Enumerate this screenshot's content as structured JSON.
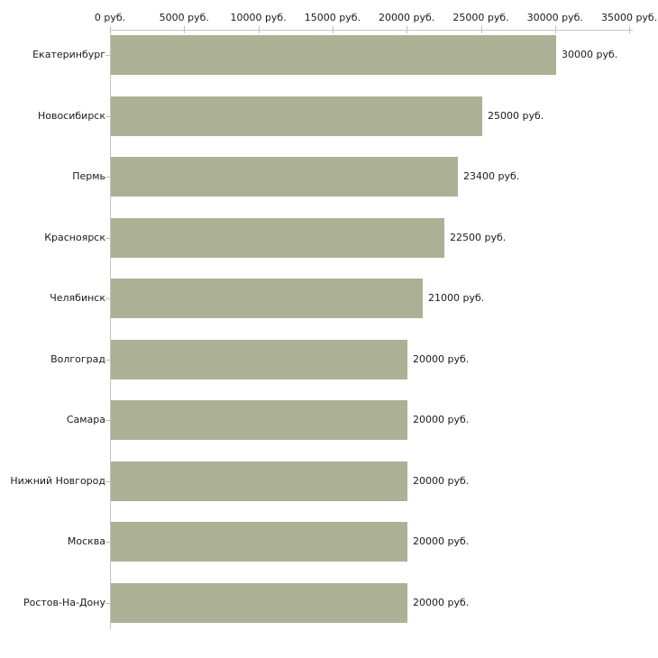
{
  "chart_data": {
    "type": "bar",
    "orientation": "horizontal",
    "title": "",
    "unit": "руб.",
    "categories": [
      "Екатеринбург",
      "Новосибирск",
      "Пермь",
      "Красноярск",
      "Челябинск",
      "Волгоград",
      "Самара",
      "Нижний Новгород",
      "Москва",
      "Ростов-На-Дону"
    ],
    "values": [
      30000,
      25000,
      23400,
      22500,
      21000,
      20000,
      20000,
      20000,
      20000,
      20000
    ],
    "value_labels": [
      "30000 руб.",
      "25000 руб.",
      "23400 руб.",
      "22500 руб.",
      "21000 руб.",
      "20000 руб.",
      "20000 руб.",
      "20000 руб.",
      "20000 руб.",
      "20000 руб."
    ],
    "xlabel": "",
    "ylabel": "",
    "xlim": [
      0,
      35000
    ],
    "x_axis": {
      "tick_values": [
        0,
        5000,
        10000,
        15000,
        20000,
        25000,
        30000,
        35000
      ],
      "tick_labels": [
        "0 руб.",
        "5000 руб.",
        "10000 руб.",
        "15000 руб.",
        "20000 руб.",
        "25000 руб.",
        "30000 руб.",
        "35000 руб."
      ],
      "position": "top"
    },
    "legend": "none",
    "grid": "off",
    "style": {
      "bar_color": "#acb196",
      "axis_line_color": "#c6c6c6",
      "tick_mark_color": "#bfc49e",
      "text_color": "#1a1a1a",
      "background_color": "#ffffff"
    }
  }
}
